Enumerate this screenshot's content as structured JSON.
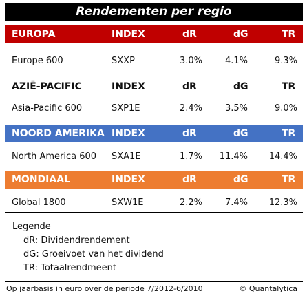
{
  "title": "Rendementen per regio",
  "colors": {
    "europa": "#c00000",
    "azie_pacific_band": "#ffffff",
    "noord_amerika": "#4472c4",
    "mondiaal": "#ed7d31",
    "title_bg": "#000000"
  },
  "headers": {
    "index": "INDEX",
    "dr": "dR",
    "dg": "dG",
    "tr": "TR"
  },
  "sections": [
    {
      "label": "EUROPA",
      "row": {
        "name": "Europe 600",
        "index": "SXXP",
        "dr": "3.0%",
        "dg": "4.1%",
        "tr": "9.3%"
      }
    },
    {
      "label": "AZIË-PACIFIC",
      "row": {
        "name": "Asia-Pacific 600",
        "index": "SXP1E",
        "dr": "2.4%",
        "dg": "3.5%",
        "tr": "9.0%"
      }
    },
    {
      "label": "NOORD AMERIKA",
      "row": {
        "name": "North America 600",
        "index": "SXA1E",
        "dr": "1.7%",
        "dg": "11.4%",
        "tr": "14.4%"
      }
    },
    {
      "label": "MONDIAAL",
      "row": {
        "name": "Global 1800",
        "index": "SXW1E",
        "dr": "2.2%",
        "dg": "7.4%",
        "tr": "12.3%"
      }
    }
  ],
  "legend": {
    "heading": "Legende",
    "items": [
      "dR: Dividendrendement",
      "dG: Groeivoet van het dividend",
      "TR: Totaalrendmeent"
    ]
  },
  "footer": {
    "note": "Op jaarbasis in euro over de periode 7/2012-6/2010",
    "copyright": "© Quantalytica"
  }
}
